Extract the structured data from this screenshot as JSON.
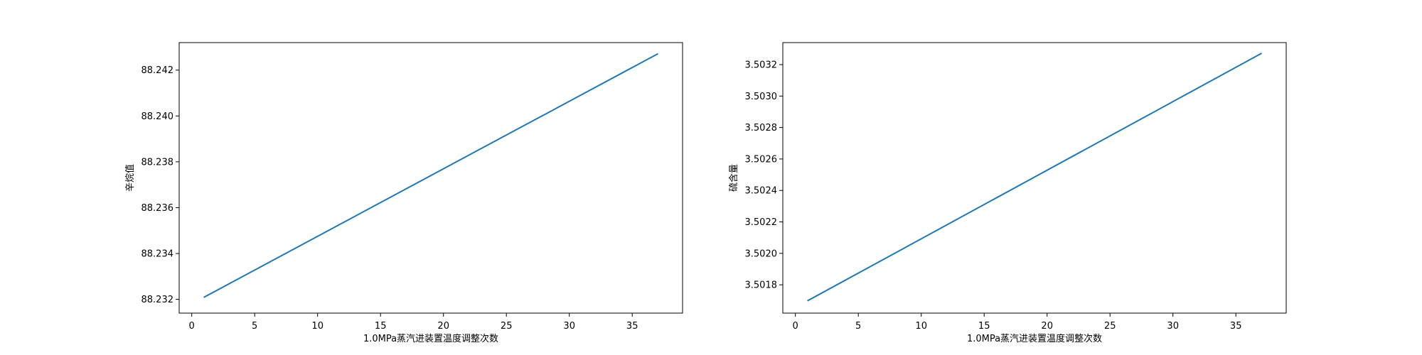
{
  "colors": {
    "line": "#1f77b4",
    "axes": "#000000",
    "background": "#ffffff"
  },
  "chart_data": [
    {
      "type": "line",
      "xlabel": "1.0MPa蒸汽进装置温度调整次数",
      "ylabel": "辛烷值",
      "xlim": [
        -1,
        39
      ],
      "ylim": [
        88.2314,
        88.2432
      ],
      "xticks": [
        0,
        5,
        10,
        15,
        20,
        25,
        30,
        35
      ],
      "yticks": [
        88.232,
        88.234,
        88.236,
        88.238,
        88.24,
        88.242
      ],
      "ytick_labels": [
        "88.232",
        "88.234",
        "88.236",
        "88.238",
        "88.240",
        "88.242"
      ],
      "grid": false,
      "x": [
        1,
        37
      ],
      "y": [
        88.2321,
        88.2427
      ]
    },
    {
      "type": "line",
      "xlabel": "1.0MPa蒸汽进装置温度调整次数",
      "ylabel": "硫含量",
      "xlim": [
        -1,
        39
      ],
      "ylim": [
        3.50162,
        3.50334
      ],
      "xticks": [
        0,
        5,
        10,
        15,
        20,
        25,
        30,
        35
      ],
      "yticks": [
        3.5018,
        3.502,
        3.5022,
        3.5024,
        3.5026,
        3.5028,
        3.503,
        3.5032
      ],
      "ytick_labels": [
        "3.5018",
        "3.5020",
        "3.5022",
        "3.5024",
        "3.5026",
        "3.5028",
        "3.5030",
        "3.5032"
      ],
      "grid": false,
      "x": [
        1,
        37
      ],
      "y": [
        3.5017,
        3.50327
      ]
    }
  ]
}
